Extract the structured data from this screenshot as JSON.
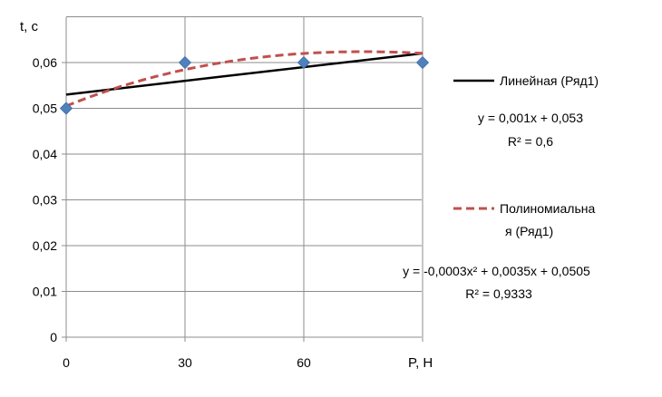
{
  "chart_data": {
    "type": "scatter",
    "ylabel": "t, с",
    "xlabel": "P, Н",
    "x_ticks": [
      "0",
      "30",
      "60"
    ],
    "y_ticks": [
      "0",
      "0,01",
      "0,02",
      "0,03",
      "0,04",
      "0,05",
      "0,06"
    ],
    "ylim": [
      0,
      0.06
    ],
    "x": [
      0,
      30,
      60,
      90
    ],
    "series": [
      {
        "values": [
          0.05,
          0.06,
          0.06,
          0.06
        ],
        "color": "#4f81bd",
        "marker": "diamond"
      }
    ],
    "trendlines": [
      {
        "kind": "linear",
        "legend": "Линейная (Ряд1)",
        "equation": "y = 0,001x + 0,053",
        "r2": "R² = 0,6",
        "color": "#000000"
      },
      {
        "kind": "polynomial",
        "legend_line1": "Полиномиальна",
        "legend_line2": "я (Ряд1)",
        "equation": "y = -0,0003x² + 0,0035x + 0,0505",
        "r2": "R² = 0,9333",
        "color": "#c0504d"
      }
    ],
    "grid": true,
    "legend_position": "right"
  }
}
